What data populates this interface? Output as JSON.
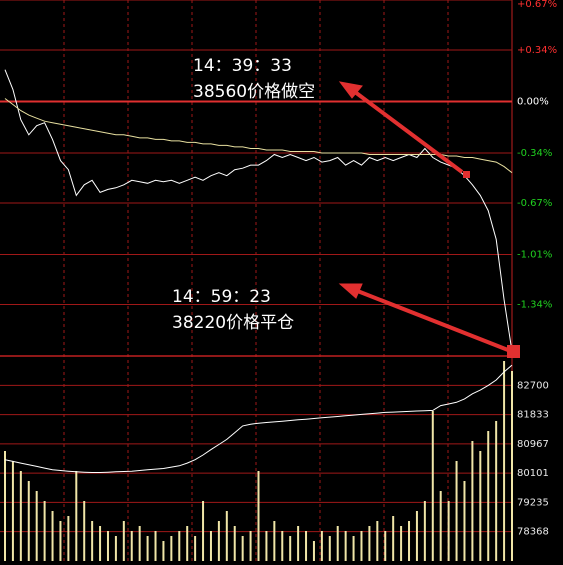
{
  "chart_data": {
    "type": "line",
    "xlim": [
      0,
      64
    ],
    "ylim": [
      -1.68,
      0.67
    ],
    "yticks": [
      {
        "value": 0.67,
        "label": "+0.67%"
      },
      {
        "value": 0.34,
        "label": "+0.34%"
      },
      {
        "value": 0,
        "label": "0.00%"
      },
      {
        "value": -0.34,
        "label": "-0.34%"
      },
      {
        "value": -0.67,
        "label": "-0.67%"
      },
      {
        "value": -1.01,
        "label": "-1.01%"
      },
      {
        "value": -1.34,
        "label": "-1.34%"
      }
    ],
    "y2lim": [
      77500,
      83570
    ],
    "y2ticks": [
      82700,
      81833,
      80967,
      80101,
      79235,
      78368
    ],
    "series": [
      {
        "color": "#ffffff",
        "values": [
          0.21,
          0.08,
          -0.12,
          -0.22,
          -0.16,
          -0.14,
          -0.25,
          -0.39,
          -0.45,
          -0.62,
          -0.55,
          -0.52,
          -0.6,
          -0.58,
          -0.57,
          -0.55,
          -0.52,
          -0.53,
          -0.54,
          -0.52,
          -0.53,
          -0.52,
          -0.54,
          -0.52,
          -0.5,
          -0.52,
          -0.49,
          -0.47,
          -0.49,
          -0.45,
          -0.44,
          -0.42,
          -0.42,
          -0.39,
          -0.35,
          -0.37,
          -0.35,
          -0.37,
          -0.39,
          -0.37,
          -0.4,
          -0.39,
          -0.37,
          -0.42,
          -0.39,
          -0.42,
          -0.37,
          -0.39,
          -0.37,
          -0.39,
          -0.37,
          -0.35,
          -0.37,
          -0.31,
          -0.37,
          -0.4,
          -0.42,
          -0.44,
          -0.49,
          -0.55,
          -0.62,
          -0.72,
          -0.91,
          -1.31,
          -1.65
        ]
      },
      {
        "color": "#e8e0a0",
        "values": [
          0.02,
          -0.02,
          -0.06,
          -0.09,
          -0.11,
          -0.13,
          -0.14,
          -0.15,
          -0.16,
          -0.17,
          -0.18,
          -0.19,
          -0.2,
          -0.21,
          -0.22,
          -0.22,
          -0.23,
          -0.24,
          -0.24,
          -0.25,
          -0.25,
          -0.26,
          -0.26,
          -0.27,
          -0.27,
          -0.28,
          -0.28,
          -0.29,
          -0.29,
          -0.3,
          -0.3,
          -0.31,
          -0.31,
          -0.32,
          -0.32,
          -0.32,
          -0.33,
          -0.33,
          -0.33,
          -0.33,
          -0.34,
          -0.34,
          -0.34,
          -0.34,
          -0.34,
          -0.34,
          -0.35,
          -0.35,
          -0.35,
          -0.35,
          -0.35,
          -0.35,
          -0.35,
          -0.35,
          -0.35,
          -0.35,
          -0.36,
          -0.36,
          -0.37,
          -0.37,
          -0.38,
          -0.39,
          -0.4,
          -0.43,
          -0.47
        ]
      },
      {
        "color": "#ffffff",
        "axis": "y2",
        "values": [
          80500,
          80450,
          80400,
          80350,
          80300,
          80250,
          80200,
          80180,
          80160,
          80140,
          80130,
          80120,
          80120,
          80130,
          80140,
          80150,
          80160,
          80180,
          80200,
          80220,
          80240,
          80280,
          80320,
          80400,
          80500,
          80640,
          80800,
          80950,
          81100,
          81300,
          81500,
          81550,
          81580,
          81600,
          81620,
          81640,
          81660,
          81680,
          81700,
          81720,
          81740,
          81760,
          81780,
          81800,
          81820,
          81840,
          81860,
          81880,
          81900,
          81910,
          81920,
          81930,
          81940,
          81950,
          81960,
          82100,
          82150,
          82200,
          82300,
          82450,
          82560,
          82700,
          82860,
          83100,
          83300
        ]
      }
    ],
    "volume": {
      "color": "#f0e6a8",
      "vlim": [
        0,
        205
      ],
      "values": [
        110,
        100,
        90,
        80,
        70,
        60,
        50,
        40,
        45,
        90,
        60,
        40,
        35,
        30,
        25,
        40,
        30,
        35,
        25,
        30,
        20,
        25,
        30,
        35,
        25,
        60,
        30,
        40,
        50,
        35,
        25,
        30,
        90,
        30,
        40,
        30,
        25,
        35,
        30,
        20,
        30,
        25,
        35,
        30,
        25,
        30,
        35,
        40,
        30,
        45,
        35,
        40,
        50,
        60,
        150,
        70,
        60,
        100,
        80,
        120,
        110,
        130,
        140,
        200,
        190
      ]
    },
    "annotations": [
      {
        "time": "14：39：33",
        "text": "38560价格做空"
      },
      {
        "time": "14：59：23",
        "text": "38220价格平仓"
      }
    ]
  }
}
